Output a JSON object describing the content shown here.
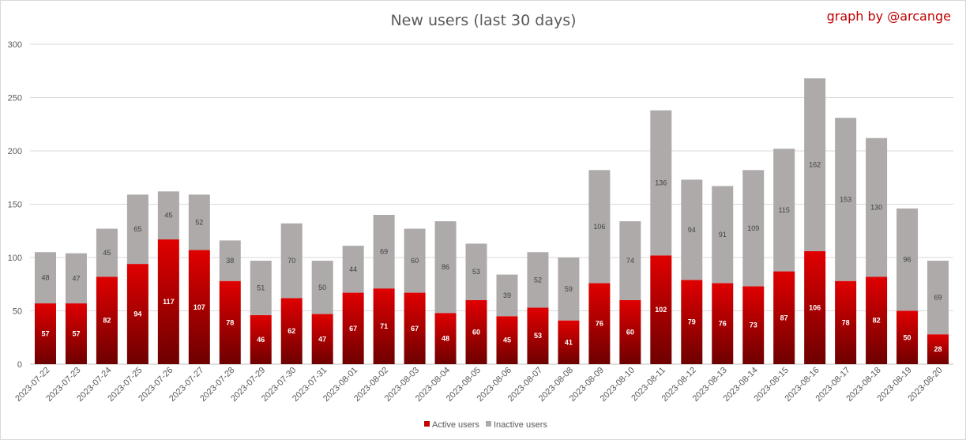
{
  "chart_data": {
    "type": "bar",
    "stacked": true,
    "title": "New users (last 30 days)",
    "credit": "graph by @arcange",
    "xlabel": "",
    "ylabel": "",
    "ylim": [
      0,
      300
    ],
    "yticks": [
      0,
      50,
      100,
      150,
      200,
      250,
      300
    ],
    "grid": true,
    "legend_position": "bottom",
    "categories": [
      "2023-07-22",
      "2023-07-23",
      "2023-07-24",
      "2023-07-25",
      "2023-07-26",
      "2023-07-27",
      "2023-07-28",
      "2023-07-29",
      "2023-07-30",
      "2023-07-31",
      "2023-08-01",
      "2023-08-02",
      "2023-08-03",
      "2023-08-04",
      "2023-08-05",
      "2023-08-06",
      "2023-08-07",
      "2023-08-08",
      "2023-08-09",
      "2023-08-10",
      "2023-08-11",
      "2023-08-12",
      "2023-08-13",
      "2023-08-14",
      "2023-08-15",
      "2023-08-16",
      "2023-08-17",
      "2023-08-18",
      "2023-08-19",
      "2023-08-20"
    ],
    "series": [
      {
        "name": "Active users",
        "color": "#c00000",
        "values": [
          57,
          57,
          82,
          94,
          117,
          107,
          78,
          46,
          62,
          47,
          67,
          71,
          67,
          48,
          60,
          45,
          53,
          41,
          76,
          60,
          102,
          79,
          76,
          73,
          87,
          106,
          78,
          82,
          50,
          28
        ]
      },
      {
        "name": "Inactive users",
        "color": "#aeaaaa",
        "values": [
          48,
          47,
          45,
          65,
          45,
          52,
          38,
          51,
          70,
          50,
          44,
          69,
          60,
          86,
          53,
          39,
          52,
          59,
          106,
          74,
          136,
          94,
          91,
          109,
          115,
          162,
          153,
          130,
          96,
          69
        ]
      }
    ]
  }
}
